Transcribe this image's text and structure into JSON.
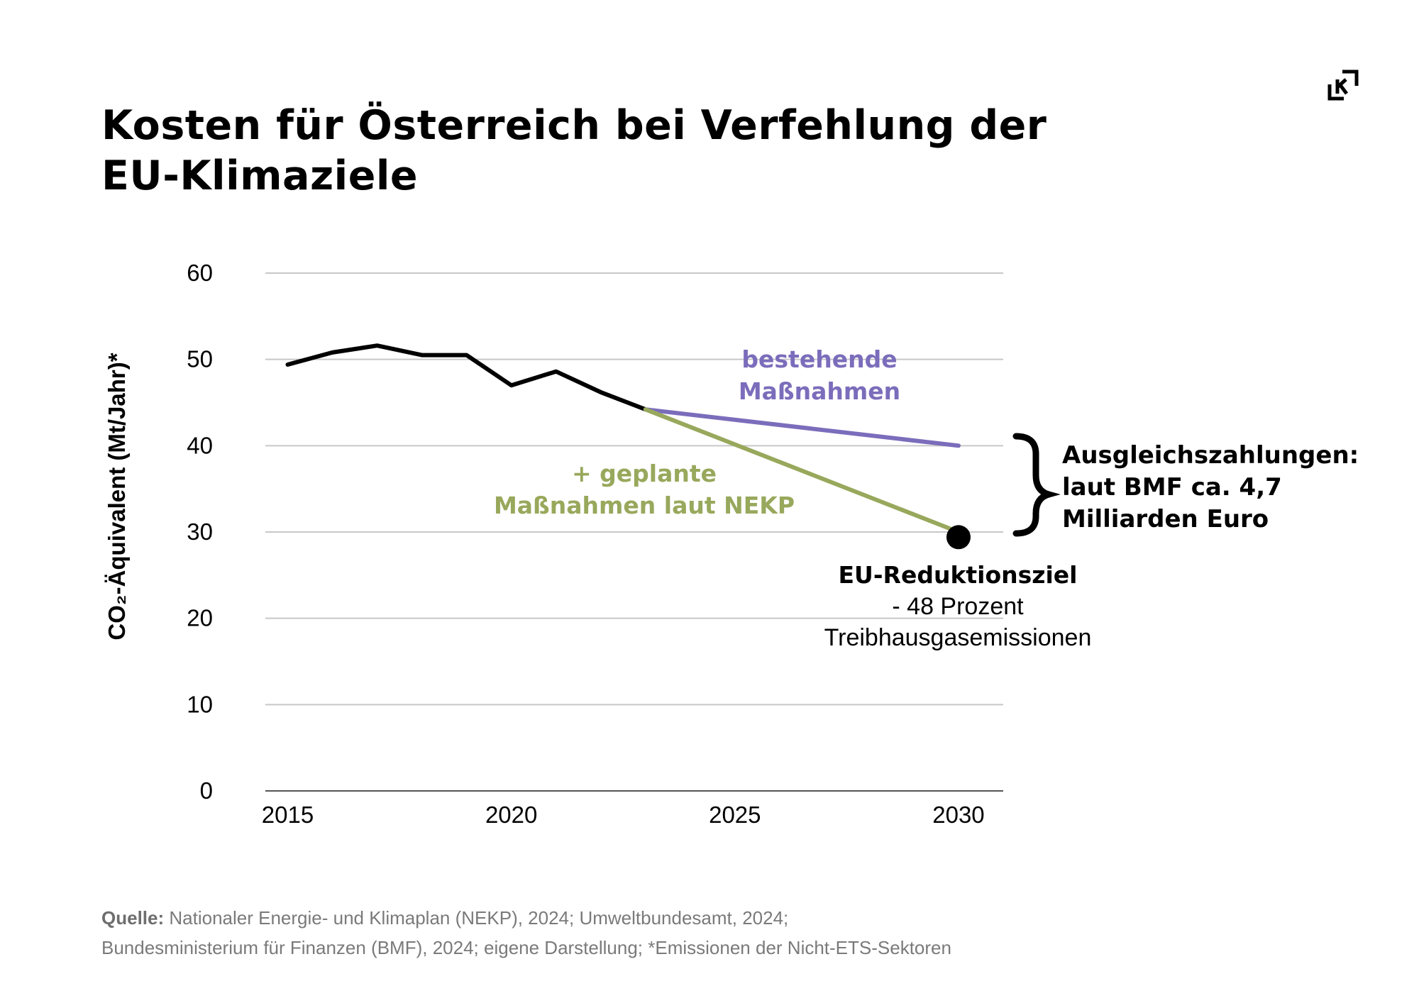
{
  "title": "Kosten für Österreich bei Verfehlung der EU-Klimaziele",
  "chart_data": {
    "type": "line",
    "ylabel": "CO₂-Äquivalent (Mt/Jahr)*",
    "ylim": [
      0,
      60
    ],
    "y_ticks": [
      0,
      10,
      20,
      30,
      40,
      50,
      60
    ],
    "x_ticks": [
      2015,
      2020,
      2025,
      2030
    ],
    "xlim": [
      2014.5,
      2031
    ],
    "grid": true,
    "series": [
      {
        "color": "#000000",
        "x": [
          2015,
          2016,
          2017,
          2018,
          2019,
          2020,
          2021,
          2022,
          2023
        ],
        "y": [
          49.4,
          50.8,
          51.6,
          50.5,
          50.5,
          47.0,
          48.6,
          46.2,
          44.2
        ]
      },
      {
        "name": "bestehende Maßnahmen",
        "color": "#7b6dbb",
        "x": [
          2023,
          2030
        ],
        "y": [
          44.2,
          40.0
        ]
      },
      {
        "name": "+ geplante Maßnahmen laut NEKP",
        "color": "#98a85c",
        "x": [
          2023,
          2030
        ],
        "y": [
          44.2,
          30.0
        ]
      }
    ],
    "target_point": {
      "x": 2030,
      "y": 29.4
    },
    "annotations": {
      "purple_label": [
        "bestehende",
        "Maßnahmen"
      ],
      "green_label": [
        "+ geplante",
        "Maßnahmen laut NEKP"
      ],
      "target_label": [
        "EU-Reduktionsziel",
        "- 48 Prozent",
        "Treibhausgasemissionen"
      ],
      "brace_label": [
        "Ausgleichszahlungen:",
        "laut BMF ca. 4,7",
        "Milliarden Euro"
      ]
    }
  },
  "source": {
    "label": "Quelle:",
    "line1": "Nationaler Energie- und Klimaplan (NEKP), 2024; Umweltbundesamt, 2024;",
    "line2": "Bundesministerium für Finanzen (BMF), 2024; eigene Darstellung; *Emissionen der Nicht-ETS-Sektoren"
  },
  "colors": {
    "purple": "#7b6dbb",
    "green": "#98a85c",
    "grid": "#c8c8c8",
    "source": "#7a7a7a"
  },
  "logo_icon": "k-corner-logo-icon"
}
